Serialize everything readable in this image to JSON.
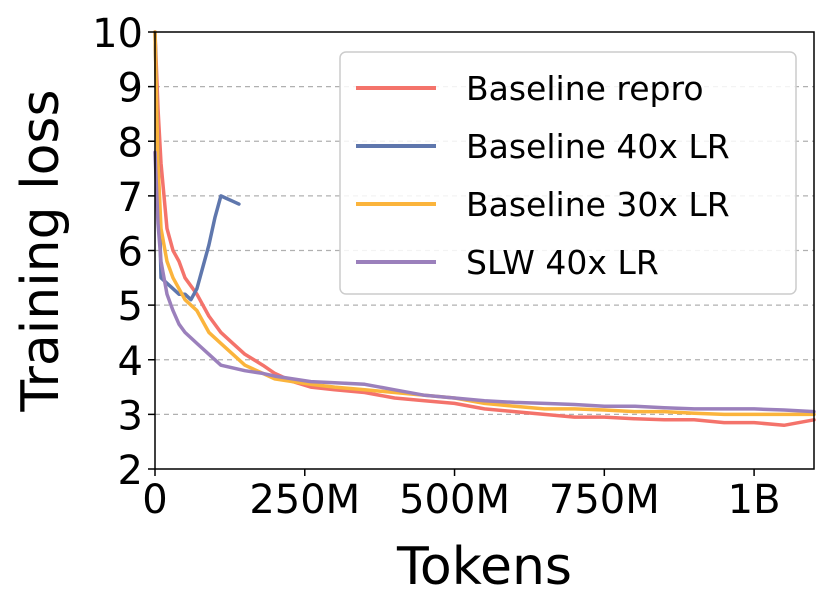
{
  "chart_data": {
    "type": "line",
    "title": "",
    "xlabel": "Tokens",
    "ylabel": "Training loss",
    "xlim": [
      0,
      1100000000
    ],
    "ylim": [
      2,
      10
    ],
    "x_ticks": [
      {
        "value": 0,
        "label": "0"
      },
      {
        "value": 250000000,
        "label": "250M"
      },
      {
        "value": 500000000,
        "label": "500M"
      },
      {
        "value": 750000000,
        "label": "750M"
      },
      {
        "value": 1000000000,
        "label": "1B"
      }
    ],
    "y_ticks": [
      {
        "value": 2,
        "label": "2"
      },
      {
        "value": 3,
        "label": "3"
      },
      {
        "value": 4,
        "label": "4"
      },
      {
        "value": 5,
        "label": "5"
      },
      {
        "value": 6,
        "label": "6"
      },
      {
        "value": 7,
        "label": "7"
      },
      {
        "value": 8,
        "label": "8"
      },
      {
        "value": 9,
        "label": "9"
      },
      {
        "value": 10,
        "label": "10"
      }
    ],
    "grid": "horizontal-dashed",
    "legend_position": "top-right",
    "series": [
      {
        "name": "Baseline repro",
        "color": "#f4736b",
        "x": [
          0,
          5000000,
          10000000,
          20000000,
          30000000,
          40000000,
          50000000,
          70000000,
          90000000,
          110000000,
          130000000,
          150000000,
          180000000,
          200000000,
          230000000,
          260000000,
          300000000,
          350000000,
          400000000,
          450000000,
          500000000,
          550000000,
          600000000,
          650000000,
          700000000,
          750000000,
          800000000,
          850000000,
          900000000,
          950000000,
          1000000000,
          1050000000,
          1100000000
        ],
        "y": [
          10.0,
          8.6,
          7.6,
          6.4,
          6.0,
          5.8,
          5.5,
          5.2,
          4.8,
          4.5,
          4.3,
          4.1,
          3.9,
          3.75,
          3.6,
          3.5,
          3.45,
          3.4,
          3.3,
          3.25,
          3.2,
          3.1,
          3.05,
          3.0,
          2.95,
          2.95,
          2.92,
          2.9,
          2.9,
          2.85,
          2.85,
          2.8,
          2.9
        ]
      },
      {
        "name": "Baseline 40x LR",
        "color": "#5f77ad",
        "x": [
          0,
          5000000,
          10000000,
          20000000,
          30000000,
          40000000,
          50000000,
          60000000,
          70000000,
          80000000,
          90000000,
          100000000,
          110000000,
          120000000,
          130000000,
          140000000
        ],
        "y": [
          10.0,
          7.8,
          5.5,
          5.4,
          5.3,
          5.2,
          5.2,
          5.1,
          5.3,
          5.7,
          6.1,
          6.6,
          7.0,
          6.95,
          6.9,
          6.85
        ]
      },
      {
        "name": "Baseline 30x LR",
        "color": "#fbb43c",
        "x": [
          0,
          5000000,
          10000000,
          20000000,
          30000000,
          40000000,
          50000000,
          70000000,
          90000000,
          110000000,
          130000000,
          150000000,
          180000000,
          200000000,
          230000000,
          260000000,
          300000000,
          350000000,
          400000000,
          450000000,
          500000000,
          550000000,
          600000000,
          650000000,
          700000000,
          750000000,
          800000000,
          850000000,
          900000000,
          950000000,
          1000000000,
          1050000000,
          1100000000
        ],
        "y": [
          10.0,
          7.6,
          6.4,
          5.8,
          5.5,
          5.3,
          5.1,
          4.9,
          4.5,
          4.3,
          4.1,
          3.9,
          3.75,
          3.65,
          3.6,
          3.55,
          3.5,
          3.45,
          3.4,
          3.35,
          3.3,
          3.2,
          3.15,
          3.1,
          3.1,
          3.08,
          3.05,
          3.05,
          3.02,
          3.0,
          3.0,
          3.0,
          3.0
        ]
      },
      {
        "name": "SLW 40x LR",
        "color": "#9b80bc",
        "x": [
          0,
          5000000,
          10000000,
          20000000,
          30000000,
          40000000,
          50000000,
          70000000,
          90000000,
          110000000,
          130000000,
          150000000,
          180000000,
          200000000,
          230000000,
          260000000,
          300000000,
          350000000,
          400000000,
          450000000,
          500000000,
          550000000,
          600000000,
          650000000,
          700000000,
          750000000,
          800000000,
          850000000,
          900000000,
          950000000,
          1000000000,
          1050000000,
          1100000000
        ],
        "y": [
          7.8,
          6.5,
          5.8,
          5.2,
          4.9,
          4.65,
          4.5,
          4.3,
          4.1,
          3.9,
          3.85,
          3.8,
          3.75,
          3.7,
          3.65,
          3.6,
          3.58,
          3.55,
          3.45,
          3.35,
          3.3,
          3.25,
          3.22,
          3.2,
          3.18,
          3.15,
          3.15,
          3.12,
          3.1,
          3.1,
          3.1,
          3.08,
          3.05
        ]
      }
    ]
  }
}
